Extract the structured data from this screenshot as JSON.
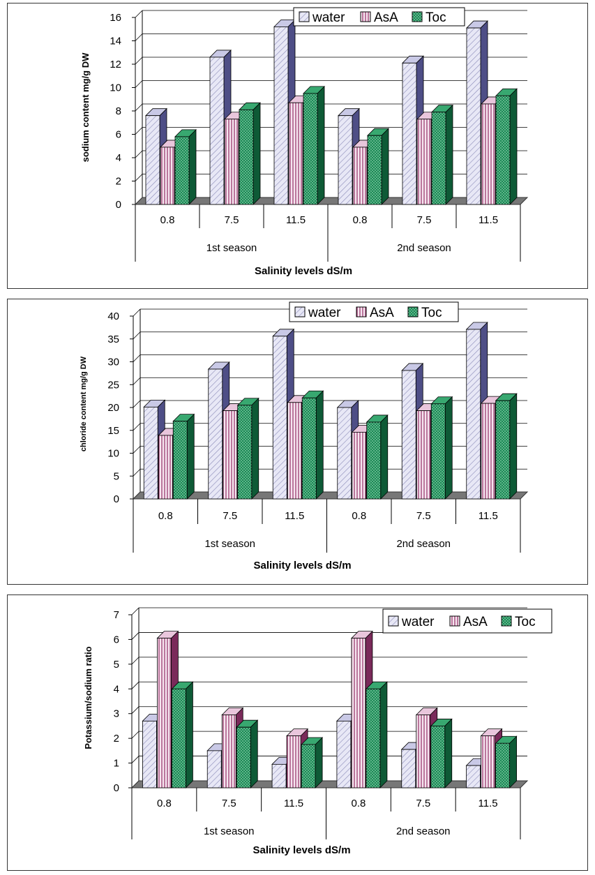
{
  "chart_data": [
    {
      "type": "bar",
      "ylabel": "sodium content  mg/g DW",
      "xlabel": "Salinity levels dS/m",
      "ylim": [
        0,
        16
      ],
      "yticks": [
        0,
        2,
        4,
        6,
        8,
        10,
        12,
        14,
        16
      ],
      "categories": [
        "0.8",
        "7.5",
        "11.5",
        "0.8",
        "7.5",
        "11.5"
      ],
      "groups": [
        "1st season",
        "2nd season"
      ],
      "legend": [
        "water",
        "AsA",
        "Toc"
      ],
      "series": [
        {
          "name": "water",
          "values": [
            7.6,
            12.6,
            15.2,
            7.6,
            12.1,
            15.1
          ]
        },
        {
          "name": "AsA",
          "values": [
            4.9,
            7.3,
            8.7,
            4.9,
            7.3,
            8.6
          ]
        },
        {
          "name": "Toc",
          "values": [
            5.8,
            8.1,
            9.5,
            5.9,
            7.9,
            9.3
          ]
        }
      ]
    },
    {
      "type": "bar",
      "ylabel": "chloride content  mg/g DW",
      "xlabel": "Salinity levels dS/m",
      "ylim": [
        0,
        40
      ],
      "yticks": [
        0,
        5,
        10,
        15,
        20,
        25,
        30,
        35,
        40
      ],
      "categories": [
        "0.8",
        "7.5",
        "11.5",
        "0.8",
        "7.5",
        "11.5"
      ],
      "groups": [
        "1st season",
        "2nd season"
      ],
      "legend": [
        "water",
        "AsA",
        "Toc"
      ],
      "series": [
        {
          "name": "water",
          "values": [
            20.1,
            28.4,
            35.6,
            20.0,
            28.1,
            37.1
          ]
        },
        {
          "name": "AsA",
          "values": [
            13.9,
            19.3,
            21.1,
            14.6,
            19.3,
            20.9
          ]
        },
        {
          "name": "Toc",
          "values": [
            17.0,
            20.5,
            22.1,
            16.8,
            20.8,
            21.5
          ]
        }
      ]
    },
    {
      "type": "bar",
      "ylabel": "Potassium/sodium ratio",
      "xlabel": "Salinity levels dS/m",
      "ylim": [
        0,
        7
      ],
      "yticks": [
        0,
        1,
        2,
        3,
        4,
        5,
        6,
        7
      ],
      "categories": [
        "0.8",
        "7.5",
        "11.5",
        "0.8",
        "7.5",
        "11.5"
      ],
      "groups": [
        "1st season",
        "2nd season"
      ],
      "legend": [
        "water",
        "AsA",
        "Toc"
      ],
      "series": [
        {
          "name": "water",
          "values": [
            2.7,
            1.5,
            0.95,
            2.7,
            1.55,
            0.9
          ]
        },
        {
          "name": "AsA",
          "values": [
            6.05,
            2.95,
            2.1,
            6.05,
            2.95,
            2.1
          ]
        },
        {
          "name": "Toc",
          "values": [
            4.0,
            2.45,
            1.75,
            4.0,
            2.5,
            1.8
          ]
        }
      ]
    }
  ],
  "colors": {
    "water_face": "#e8e8f6",
    "water_hatch": "#8a8ab8",
    "asa_face": "#f6e6f0",
    "asa_hatch": "#9a3a6e",
    "toc_face": "#1a8a55",
    "toc_dot": "#c8f0d8",
    "floor": "#777777",
    "grid": "#000000"
  }
}
